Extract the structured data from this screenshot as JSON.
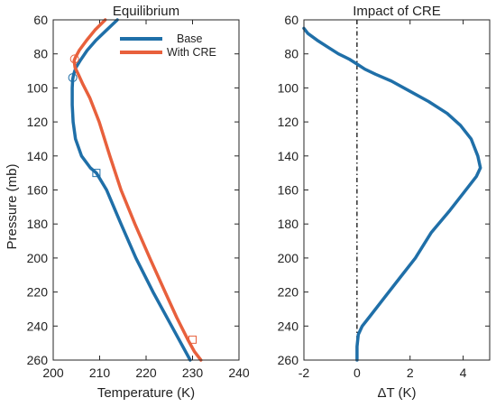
{
  "chart_data": [
    {
      "type": "line",
      "title": "Equilibrium",
      "xlabel": "Temperature (K)",
      "ylabel": "Pressure (mb)",
      "xlim": [
        200,
        240
      ],
      "ylim": [
        60,
        260
      ],
      "y_reversed": true,
      "x_ticks": [
        200,
        210,
        220,
        230,
        240
      ],
      "y_ticks": [
        60,
        80,
        100,
        120,
        140,
        160,
        180,
        200,
        220,
        240,
        260
      ],
      "legend": "top-right",
      "series": [
        {
          "name": "Base",
          "color": "#1F6FA8",
          "points": [
            [
              213.8,
              60
            ],
            [
              211.5,
              66
            ],
            [
              209.2,
              72
            ],
            [
              207.3,
              78
            ],
            [
              205.8,
              84
            ],
            [
              204.9,
              88
            ],
            [
              204.4,
              92
            ],
            [
              204.2,
              95
            ],
            [
              204.1,
              100
            ],
            [
              204.1,
              110
            ],
            [
              204.3,
              120
            ],
            [
              204.8,
              130
            ],
            [
              206.1,
              140
            ],
            [
              208.0,
              147
            ],
            [
              209.3,
              150
            ],
            [
              211.5,
              160
            ],
            [
              214.6,
              180
            ],
            [
              217.8,
              200
            ],
            [
              221.5,
              220
            ],
            [
              225.5,
              240
            ],
            [
              229.5,
              260
            ]
          ]
        },
        {
          "name": "With CRE",
          "color": "#E8603C",
          "points": [
            [
              211.2,
              60
            ],
            [
              209.0,
              66
            ],
            [
              207.2,
              72
            ],
            [
              205.6,
              78
            ],
            [
              204.8,
              82
            ],
            [
              204.5,
              84
            ],
            [
              204.7,
              88
            ],
            [
              205.4,
              92
            ],
            [
              206.4,
              98
            ],
            [
              207.9,
              106
            ],
            [
              209.9,
              120
            ],
            [
              212.2,
              140
            ],
            [
              214.6,
              160
            ],
            [
              217.6,
              180
            ],
            [
              220.8,
              200
            ],
            [
              224.1,
              220
            ],
            [
              226.6,
              235
            ],
            [
              229.0,
              248
            ],
            [
              230.4,
              255
            ],
            [
              231.8,
              260
            ]
          ]
        }
      ],
      "markers": [
        {
          "series": "With CRE",
          "shape": "circle",
          "x": 204.6,
          "y": 83
        },
        {
          "series": "Base",
          "shape": "circle",
          "x": 204.2,
          "y": 94
        },
        {
          "series": "Base",
          "shape": "square",
          "x": 209.3,
          "y": 150
        },
        {
          "series": "With CRE",
          "shape": "square",
          "x": 230.0,
          "y": 248
        }
      ]
    },
    {
      "type": "line",
      "title": "Impact of CRE",
      "xlabel": "ΔT (K)",
      "ylabel": "",
      "xlim": [
        -2,
        5
      ],
      "ylim": [
        60,
        260
      ],
      "y_reversed": true,
      "x_ticks": [
        -2,
        0,
        2,
        4
      ],
      "y_ticks": [
        60,
        80,
        100,
        120,
        140,
        160,
        180,
        200,
        220,
        240,
        260
      ],
      "zero_line": 0,
      "series": [
        {
          "name": "",
          "color": "#1F6FA8",
          "points": [
            [
              -2.0,
              65
            ],
            [
              -1.85,
              68
            ],
            [
              -1.5,
              72
            ],
            [
              -1.1,
              76
            ],
            [
              -0.7,
              80
            ],
            [
              -0.3,
              83
            ],
            [
              0.0,
              86
            ],
            [
              0.3,
              89
            ],
            [
              0.7,
              92
            ],
            [
              1.3,
              96
            ],
            [
              2.0,
              102
            ],
            [
              2.7,
              108
            ],
            [
              3.4,
              115
            ],
            [
              3.9,
              122
            ],
            [
              4.3,
              130
            ],
            [
              4.55,
              140
            ],
            [
              4.65,
              147
            ],
            [
              4.5,
              152
            ],
            [
              4.0,
              162
            ],
            [
              3.5,
              172
            ],
            [
              2.8,
              185
            ],
            [
              2.2,
              200
            ],
            [
              1.6,
              212
            ],
            [
              1.0,
              224
            ],
            [
              0.5,
              234
            ],
            [
              0.2,
              240
            ],
            [
              0.05,
              245
            ],
            [
              0.0,
              252
            ],
            [
              0.0,
              260
            ]
          ]
        }
      ]
    }
  ]
}
